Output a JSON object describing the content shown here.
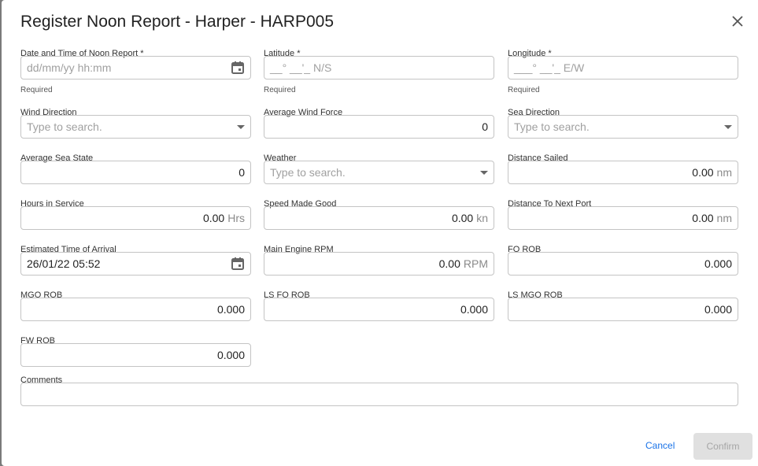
{
  "title": "Register Noon Report - Harper - HARP005",
  "fields": [
    {
      "id": "date-time",
      "label": "Date and Time of Noon Report *",
      "placeholder": "dd/mm/yy hh:mm",
      "icon": "calendar-icon",
      "help": "Required",
      "col": 0,
      "row": 0
    },
    {
      "id": "latitude",
      "label": "Latitude *",
      "placeholder": "__° __'_ N/S",
      "help": "Required",
      "col": 1,
      "row": 0
    },
    {
      "id": "longitude",
      "label": "Longitude *",
      "placeholder": "___° __'_ E/W",
      "help": "Required",
      "col": 2,
      "row": 0
    },
    {
      "id": "wind-direction",
      "label": "Wind Direction",
      "placeholder": "Type to search.",
      "icon": "dropdown-arrow-icon",
      "col": 0,
      "row": 1
    },
    {
      "id": "average-wind-force",
      "label": "Average Wind Force",
      "value": "0",
      "num": true,
      "col": 1,
      "row": 1
    },
    {
      "id": "sea-direction",
      "label": "Sea Direction",
      "placeholder": "Type to search.",
      "icon": "dropdown-arrow-icon",
      "col": 2,
      "row": 1
    },
    {
      "id": "average-sea-state",
      "label": "Average Sea State",
      "value": "0",
      "num": true,
      "col": 0,
      "row": 2
    },
    {
      "id": "weather",
      "label": "Weather",
      "placeholder": "Type to search.",
      "icon": "dropdown-arrow-icon",
      "col": 1,
      "row": 2
    },
    {
      "id": "distance-sailed",
      "label": "Distance Sailed",
      "value": "0.00",
      "unit": "nm",
      "num": true,
      "col": 2,
      "row": 2
    },
    {
      "id": "hours-in-service",
      "label": "Hours in Service",
      "value": "0.00",
      "unit": "Hrs",
      "num": true,
      "col": 0,
      "row": 3
    },
    {
      "id": "speed-made-good",
      "label": "Speed Made Good",
      "value": "0.00",
      "unit": "kn",
      "num": true,
      "col": 1,
      "row": 3
    },
    {
      "id": "distance-to-next-port",
      "label": "Distance To Next Port",
      "value": "0.00",
      "unit": "nm",
      "num": true,
      "col": 2,
      "row": 3
    },
    {
      "id": "eta",
      "label": "Estimated Time of Arrival",
      "value": "26/01/22 05:52",
      "icon": "calendar-icon",
      "col": 0,
      "row": 4
    },
    {
      "id": "main-engine-rpm",
      "label": "Main Engine RPM",
      "value": "0.00",
      "unit": "RPM",
      "num": true,
      "col": 1,
      "row": 4
    },
    {
      "id": "fo-rob",
      "label": "FO ROB",
      "value": "0.000",
      "num": true,
      "col": 2,
      "row": 4
    },
    {
      "id": "mgo-rob",
      "label": "MGO ROB",
      "value": "0.000",
      "num": true,
      "col": 0,
      "row": 5
    },
    {
      "id": "ls-fo-rob",
      "label": "LS FO ROB",
      "value": "0.000",
      "num": true,
      "col": 1,
      "row": 5
    },
    {
      "id": "ls-mgo-rob",
      "label": "LS MGO ROB",
      "value": "0.000",
      "num": true,
      "col": 2,
      "row": 5
    },
    {
      "id": "fw-rob",
      "label": "FW ROB",
      "value": "0.000",
      "num": true,
      "col": 0,
      "row": 6
    }
  ],
  "comments": {
    "label": "Comments",
    "value": ""
  },
  "actions": {
    "cancel": "Cancel",
    "confirm": "Confirm"
  },
  "colors": {
    "accent": "#1a73e8",
    "disabled_bg": "#e0e0e0"
  }
}
